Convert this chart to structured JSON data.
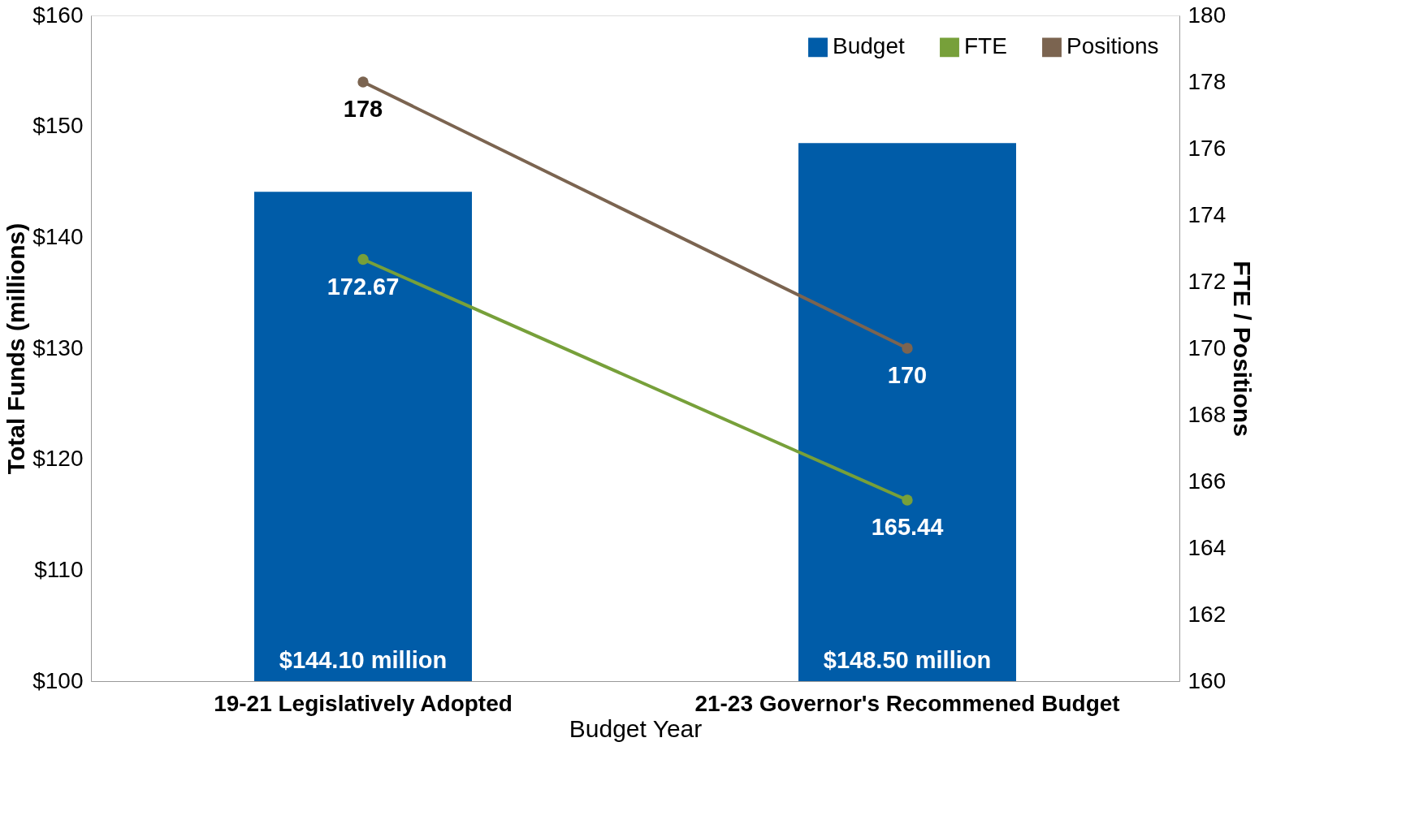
{
  "chart_data": {
    "type": "bar",
    "xlabel": "Budget Year",
    "ylabel": "Total Funds (millions)",
    "y2label": "FTE / Positions",
    "categories": [
      "19-21 Legislatively Adopted",
      "21-23 Governor's Recommened Budget"
    ],
    "series": [
      {
        "name": "Budget",
        "color": "#005ca8",
        "values": [
          144.1,
          148.5
        ],
        "value_labels": [
          "$144.10 million",
          "$148.50 million"
        ]
      },
      {
        "name": "FTE",
        "type": "line",
        "axis": "y2",
        "color": "#77a03a",
        "values": [
          172.67,
          165.44
        ],
        "value_labels": [
          "172.67",
          "165.44"
        ]
      },
      {
        "name": "Positions",
        "type": "line",
        "axis": "y2",
        "color": "#7b6450",
        "values": [
          178,
          170
        ],
        "value_labels": [
          "178",
          "170"
        ]
      }
    ],
    "ylim": [
      100,
      160
    ],
    "yticks": [
      {
        "value": 100,
        "label": "$100"
      },
      {
        "value": 110,
        "label": "$110"
      },
      {
        "value": 120,
        "label": "$120"
      },
      {
        "value": 130,
        "label": "$130"
      },
      {
        "value": 140,
        "label": "$140"
      },
      {
        "value": 150,
        "label": "$150"
      },
      {
        "value": 160,
        "label": "$160"
      }
    ],
    "y2lim": [
      160,
      180
    ],
    "y2ticks": [
      160,
      162,
      164,
      166,
      168,
      170,
      172,
      174,
      176,
      178,
      180
    ],
    "grid": false,
    "legend": "top right",
    "marker": "circle",
    "line_style": "solid"
  }
}
